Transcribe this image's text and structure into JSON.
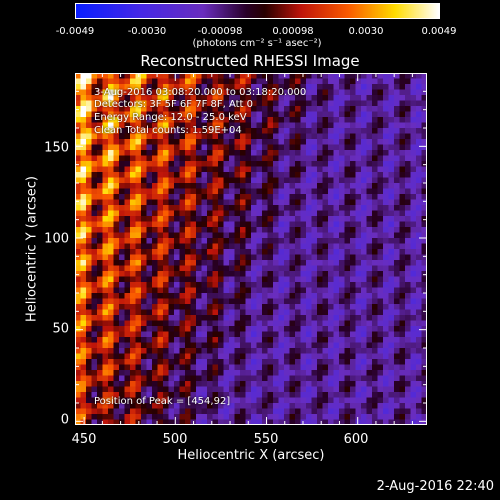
{
  "colorbar": {
    "ticks": [
      "-0.0049",
      "-0.0030",
      "-0.00098",
      "0.00098",
      "0.0030",
      "0.0049"
    ],
    "units": "(photons cm⁻² s⁻¹ asec⁻²)",
    "min": -0.0049,
    "max": 0.0049
  },
  "chart_data": {
    "type": "heatmap",
    "title": "Reconstructed RHESSI Image",
    "xlabel": "Heliocentric X (arcsec)",
    "ylabel": "Heliocentric Y (arcsec)",
    "xlim": [
      445,
      638
    ],
    "ylim": [
      -2,
      190
    ],
    "x_ticks": [
      450,
      500,
      550,
      600
    ],
    "y_ticks": [
      0,
      50,
      100,
      150
    ],
    "colormap": "blue-purple-red-yellow-white",
    "annotations": [
      "3-Aug-2016 03:08:20.000 to 03:18:20.000",
      "Detectors: 3F 5F 6F 7F 8F, Att 0",
      "Energy Range: 12.0 - 25.0 keV",
      "Clean     Total counts: 1.59E+04"
    ],
    "peak_label": "Position of Peak = [454,92]",
    "peak": [
      454,
      92
    ]
  },
  "footer": {
    "timestamp": "2-Aug-2016 22:40"
  }
}
